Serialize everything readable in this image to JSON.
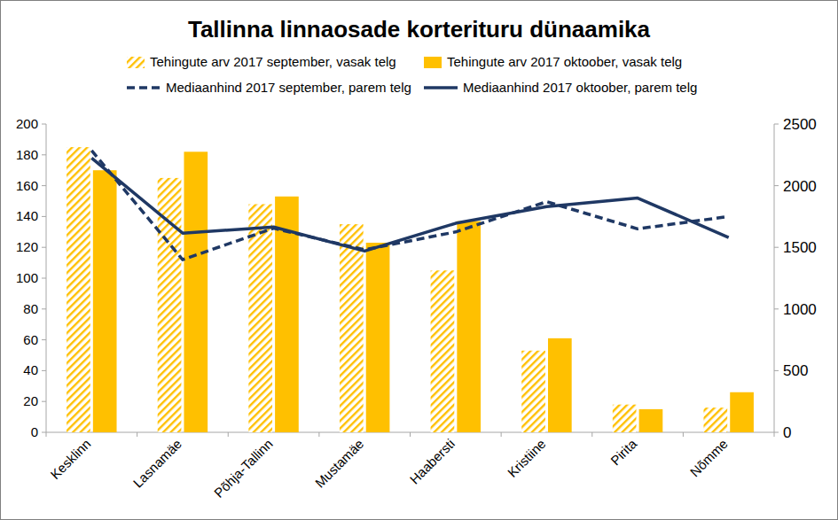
{
  "chart_data": {
    "type": "bar",
    "title": "Tallinna linnaosade korterituru dünaamika",
    "categories": [
      "Kesklinn",
      "Lasnamäe",
      "Põhja-Tallinn",
      "Mustamäe",
      "Haabersti",
      "Kristiine",
      "Pirita",
      "Nõmme"
    ],
    "series": [
      {
        "name": "Tehingute arv 2017 september, vasak telg",
        "type": "bar",
        "color": "#ffc000",
        "values": [
          185,
          165,
          148,
          135,
          105,
          53,
          18,
          16
        ]
      },
      {
        "name": "Tehingute arv 2017 oktoober, vasak telg",
        "type": "bar",
        "color": "#ffc000",
        "values": [
          170,
          182,
          153,
          123,
          137,
          61,
          15,
          26
        ]
      },
      {
        "name": "Mediaanhind 2017 september, parem telg",
        "type": "line",
        "axis": "y2",
        "color": "#1f3864",
        "line_style": "dashed",
        "values": [
          2285,
          1400,
          1655,
          1480,
          1625,
          1870,
          1650,
          1750
        ]
      },
      {
        "name": "Mediaanhind 2017 oktoober, parem telg",
        "type": "line",
        "axis": "y2",
        "color": "#1f3864",
        "line_style": "solid",
        "values": [
          2225,
          1615,
          1665,
          1470,
          1695,
          1830,
          1900,
          1580
        ]
      }
    ],
    "ylim": [
      0,
      200
    ],
    "yticks": [
      0,
      20,
      40,
      60,
      80,
      100,
      120,
      140,
      160,
      180,
      200
    ],
    "y2lim": [
      0,
      2500
    ],
    "y2ticks": [
      0,
      500,
      1000,
      1500,
      2000,
      2500
    ],
    "grid": false,
    "legend": "top"
  }
}
